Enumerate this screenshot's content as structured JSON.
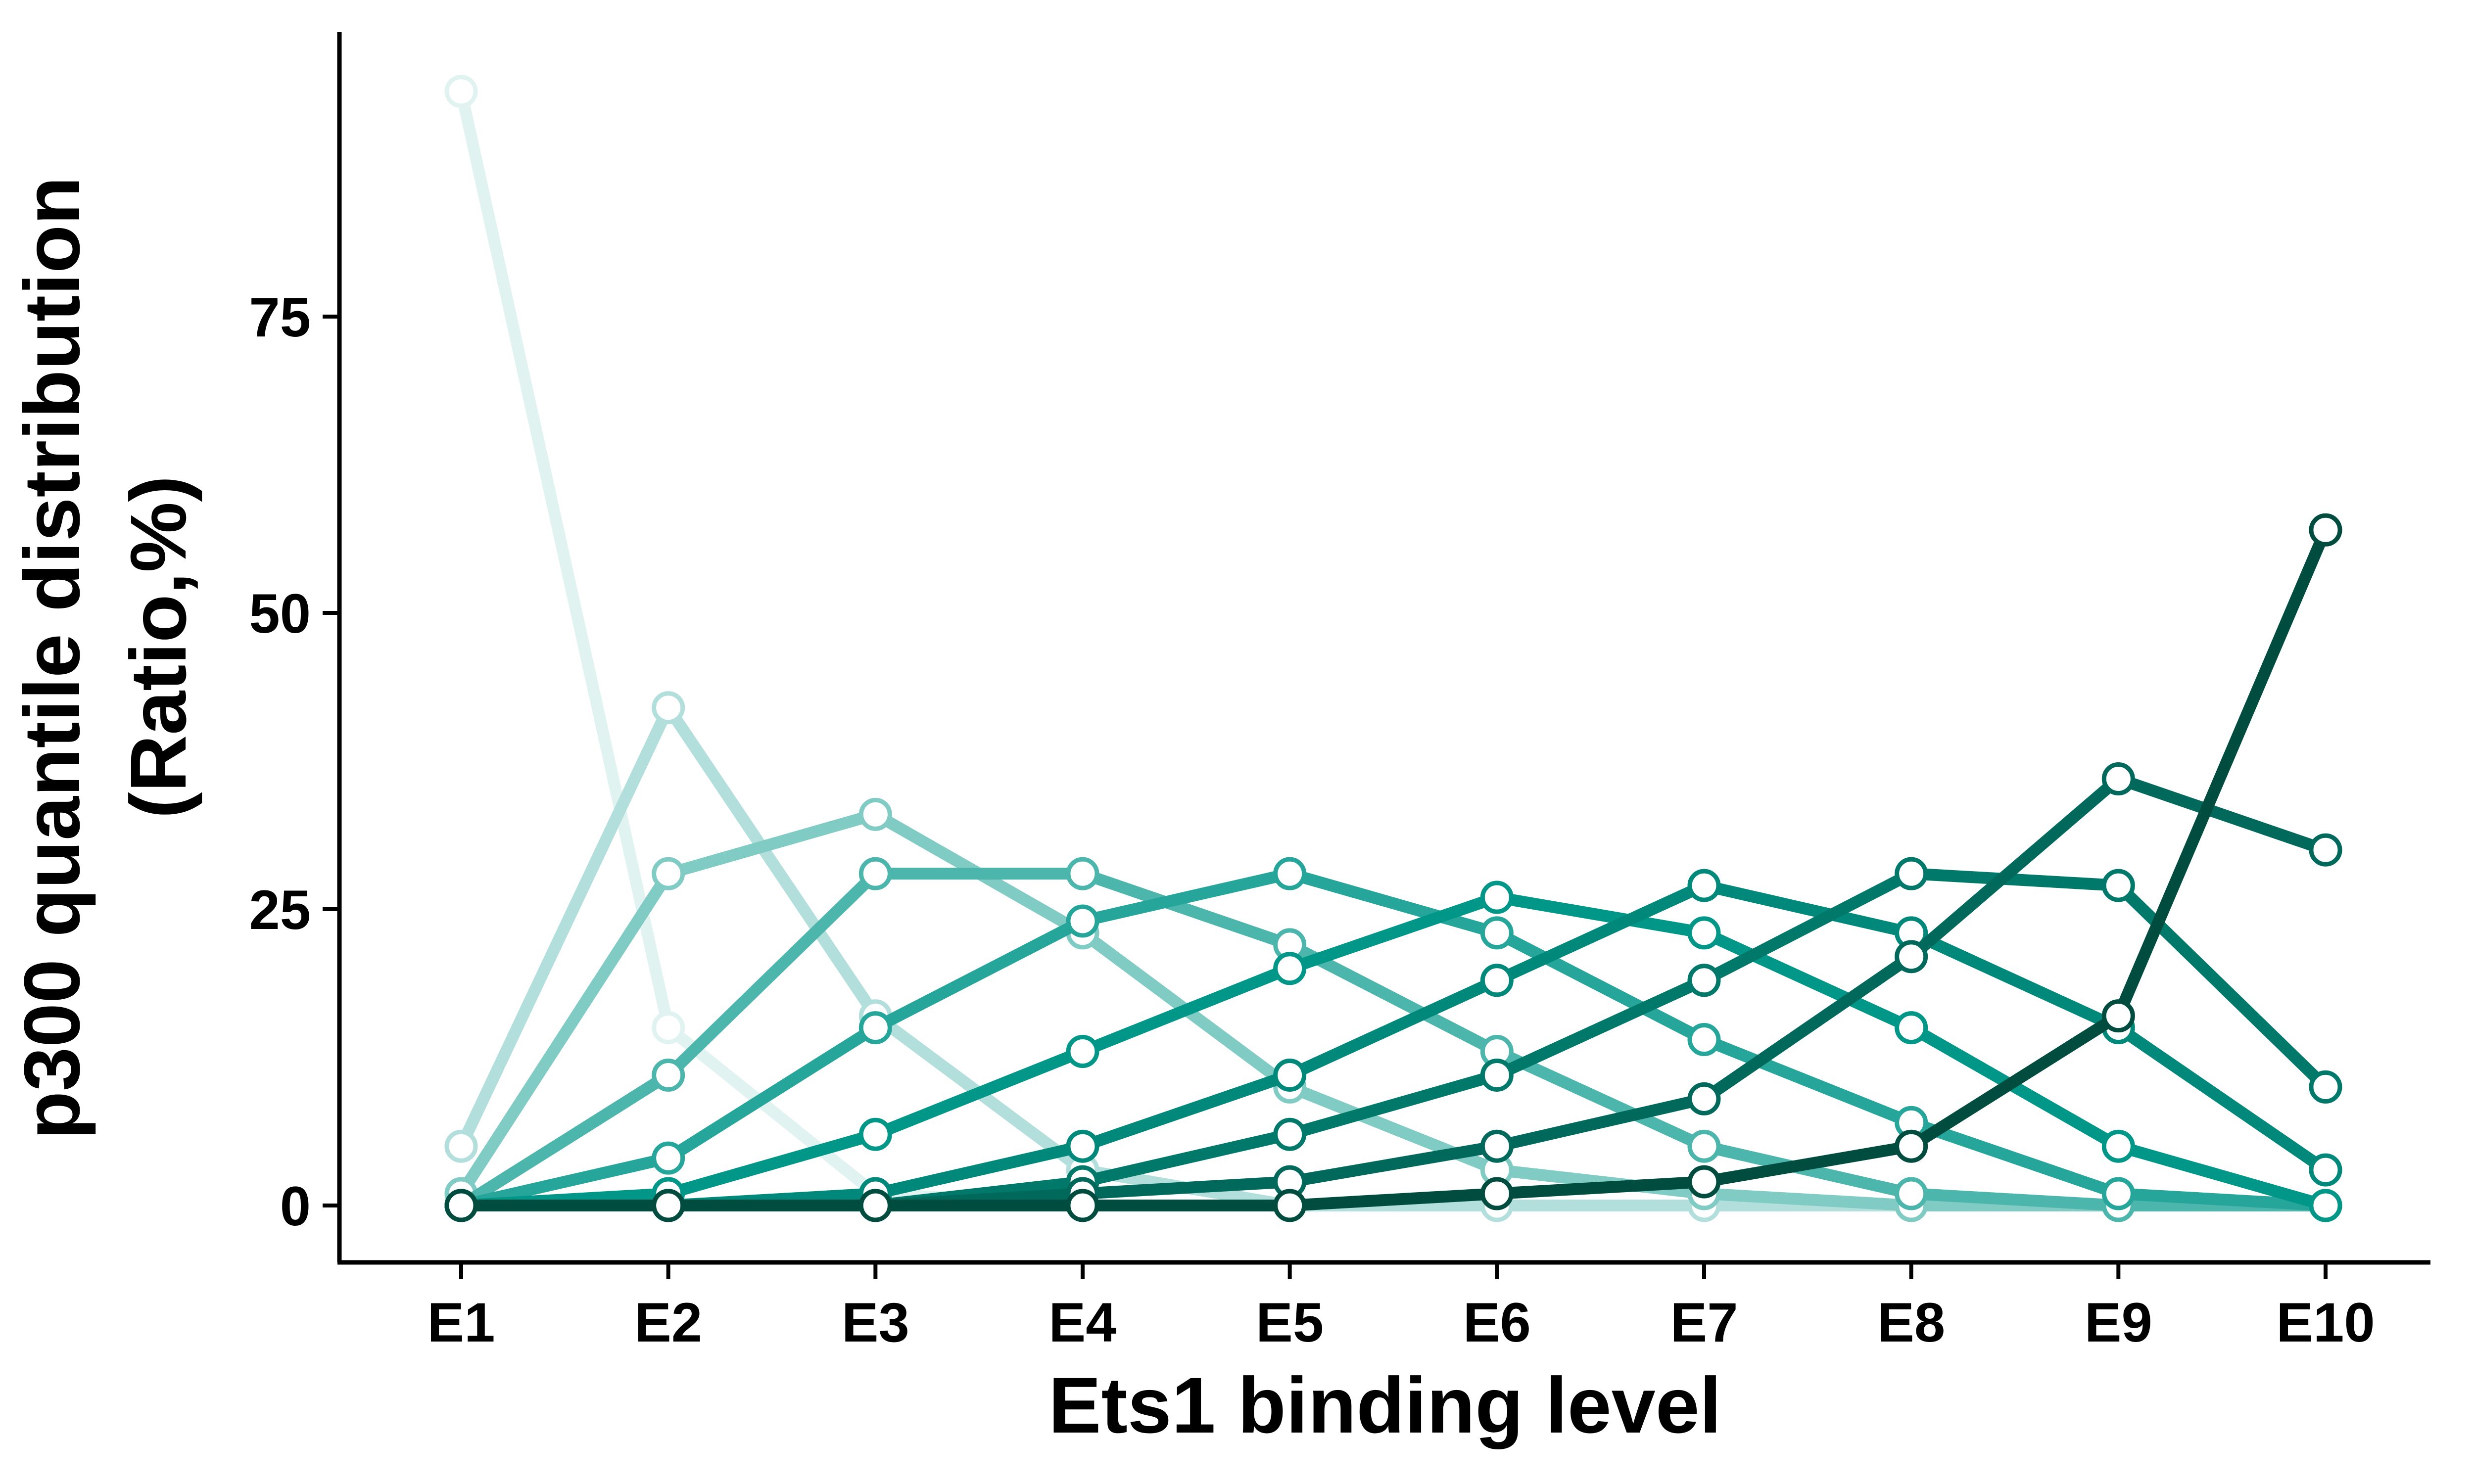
{
  "chart_data": {
    "type": "line",
    "xlabel": "Ets1 binding level",
    "ylabel_lines": [
      "p300 quantile distribution",
      "(Ratio,%)"
    ],
    "categories": [
      "E1",
      "E2",
      "E3",
      "E4",
      "E5",
      "E6",
      "E7",
      "E8",
      "E9",
      "E10"
    ],
    "yticks": [
      0,
      25,
      50,
      75
    ],
    "ylim": [
      -4.8,
      99
    ],
    "grid": false,
    "legend": "none",
    "series": [
      {
        "color": "#E0F3F1",
        "values": [
          94,
          15,
          1,
          0,
          0,
          0,
          0,
          0,
          0,
          0
        ]
      },
      {
        "color": "#B2DFDB",
        "values": [
          5,
          42,
          16,
          3,
          0,
          0,
          0,
          0,
          0,
          0
        ]
      },
      {
        "color": "#80CBC4",
        "values": [
          1,
          28,
          33,
          23,
          10,
          3,
          1,
          0,
          0,
          0
        ]
      },
      {
        "color": "#4DB6AC",
        "values": [
          0,
          11,
          28,
          28,
          22,
          13,
          5,
          1,
          0,
          0
        ]
      },
      {
        "color": "#26A69A",
        "values": [
          0,
          4,
          15,
          24,
          28,
          23,
          14,
          7,
          1,
          0
        ]
      },
      {
        "color": "#009688",
        "values": [
          0,
          1,
          6,
          13,
          20,
          26,
          23,
          15,
          5,
          0
        ]
      },
      {
        "color": "#00897B",
        "values": [
          0,
          0,
          1,
          5,
          11,
          19,
          27,
          23,
          15,
          3
        ]
      },
      {
        "color": "#00796B",
        "values": [
          0,
          0,
          0,
          2,
          6,
          11,
          19,
          28,
          27,
          10
        ]
      },
      {
        "color": "#00695C",
        "values": [
          0,
          0,
          0,
          1,
          2,
          5,
          9,
          21,
          36,
          30
        ]
      },
      {
        "color": "#004D40",
        "values": [
          0,
          0,
          0,
          0,
          0,
          1,
          2,
          5,
          16,
          57
        ]
      }
    ]
  }
}
